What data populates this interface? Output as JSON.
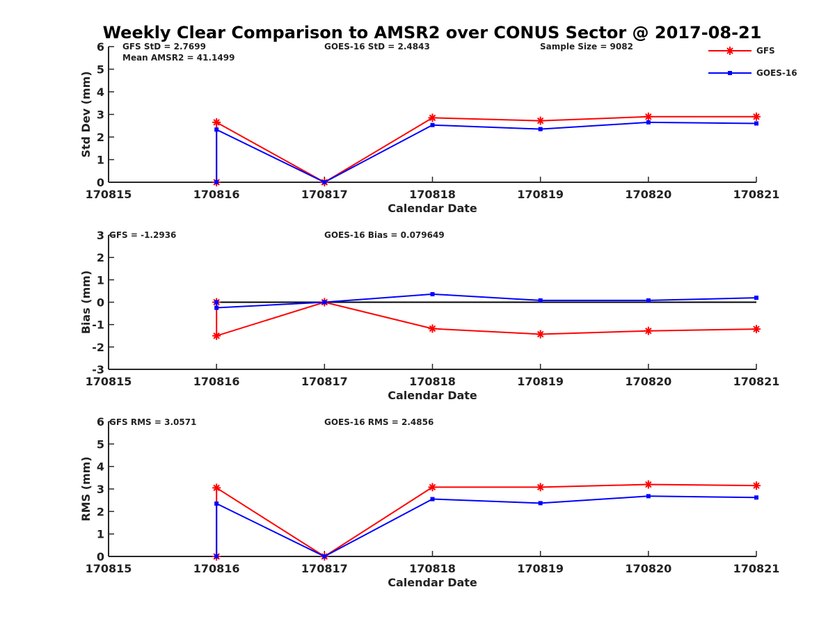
{
  "title": "Weekly Clear Comparison to AMSR2 over CONUS Sector @ 2017-08-21",
  "colors": {
    "gfs": "#ff0000",
    "goes": "#0000ff",
    "zero": "#000000",
    "axis": "#262626"
  },
  "legend": {
    "gfs": "GFS",
    "goes": "GOES-16",
    "placement": "top-right"
  },
  "panels": [
    {
      "annotations": [
        "GFS StD = 2.7699",
        "Mean AMSR2 = 41.1499",
        "GOES-16 StD = 2.4843",
        "Sample Size = 9082"
      ]
    },
    {
      "annotations": [
        "GFS = -1.2936",
        "GOES-16 Bias  = 0.079649"
      ]
    },
    {
      "annotations": [
        "GFS RMS = 3.0571",
        "GOES-16 RMS = 2.4856"
      ]
    }
  ],
  "chart_data": [
    {
      "type": "line",
      "title": "Weekly Clear Comparison to AMSR2 over CONUS Sector @ 2017-08-21",
      "xlabel": "Calendar Date",
      "ylabel": "Std Dev (mm)",
      "xlim": [
        170815,
        170821
      ],
      "ylim": [
        0,
        6
      ],
      "xticks": [
        170815,
        170816,
        170817,
        170818,
        170819,
        170820,
        170821
      ],
      "yticks": [
        0,
        1,
        2,
        3,
        4,
        5,
        6
      ],
      "x": [
        170816,
        170816,
        170817,
        170818,
        170819,
        170820,
        170821
      ],
      "series": [
        {
          "name": "GFS",
          "values": [
            0,
            2.65,
            0,
            2.85,
            2.72,
            2.9,
            2.9
          ]
        },
        {
          "name": "GOES-16",
          "values": [
            0,
            2.33,
            0,
            2.53,
            2.35,
            2.65,
            2.6
          ]
        }
      ],
      "zero_line": false
    },
    {
      "type": "line",
      "xlabel": "Calendar Date",
      "ylabel": "Bias (mm)",
      "xlim": [
        170815,
        170821
      ],
      "ylim": [
        -3,
        3
      ],
      "xticks": [
        170815,
        170816,
        170817,
        170818,
        170819,
        170820,
        170821
      ],
      "yticks": [
        -3,
        -2,
        -1,
        0,
        1,
        2,
        3
      ],
      "x": [
        170816,
        170816,
        170817,
        170818,
        170819,
        170820,
        170821
      ],
      "series": [
        {
          "name": "GFS",
          "values": [
            0,
            -1.5,
            0,
            -1.18,
            -1.43,
            -1.28,
            -1.2
          ]
        },
        {
          "name": "GOES-16",
          "values": [
            0,
            -0.25,
            0,
            0.36,
            0.08,
            0.08,
            0.2
          ]
        }
      ],
      "zero_line": true
    },
    {
      "type": "line",
      "xlabel": "Calendar Date",
      "ylabel": "RMS (mm)",
      "xlim": [
        170815,
        170821
      ],
      "ylim": [
        0,
        6
      ],
      "xticks": [
        170815,
        170816,
        170817,
        170818,
        170819,
        170820,
        170821
      ],
      "yticks": [
        0,
        1,
        2,
        3,
        4,
        5,
        6
      ],
      "x": [
        170816,
        170816,
        170817,
        170818,
        170819,
        170820,
        170821
      ],
      "series": [
        {
          "name": "GFS",
          "values": [
            0,
            3.05,
            0,
            3.08,
            3.08,
            3.2,
            3.15
          ]
        },
        {
          "name": "GOES-16",
          "values": [
            0,
            2.35,
            0,
            2.55,
            2.37,
            2.68,
            2.62
          ]
        }
      ],
      "zero_line": false
    }
  ]
}
